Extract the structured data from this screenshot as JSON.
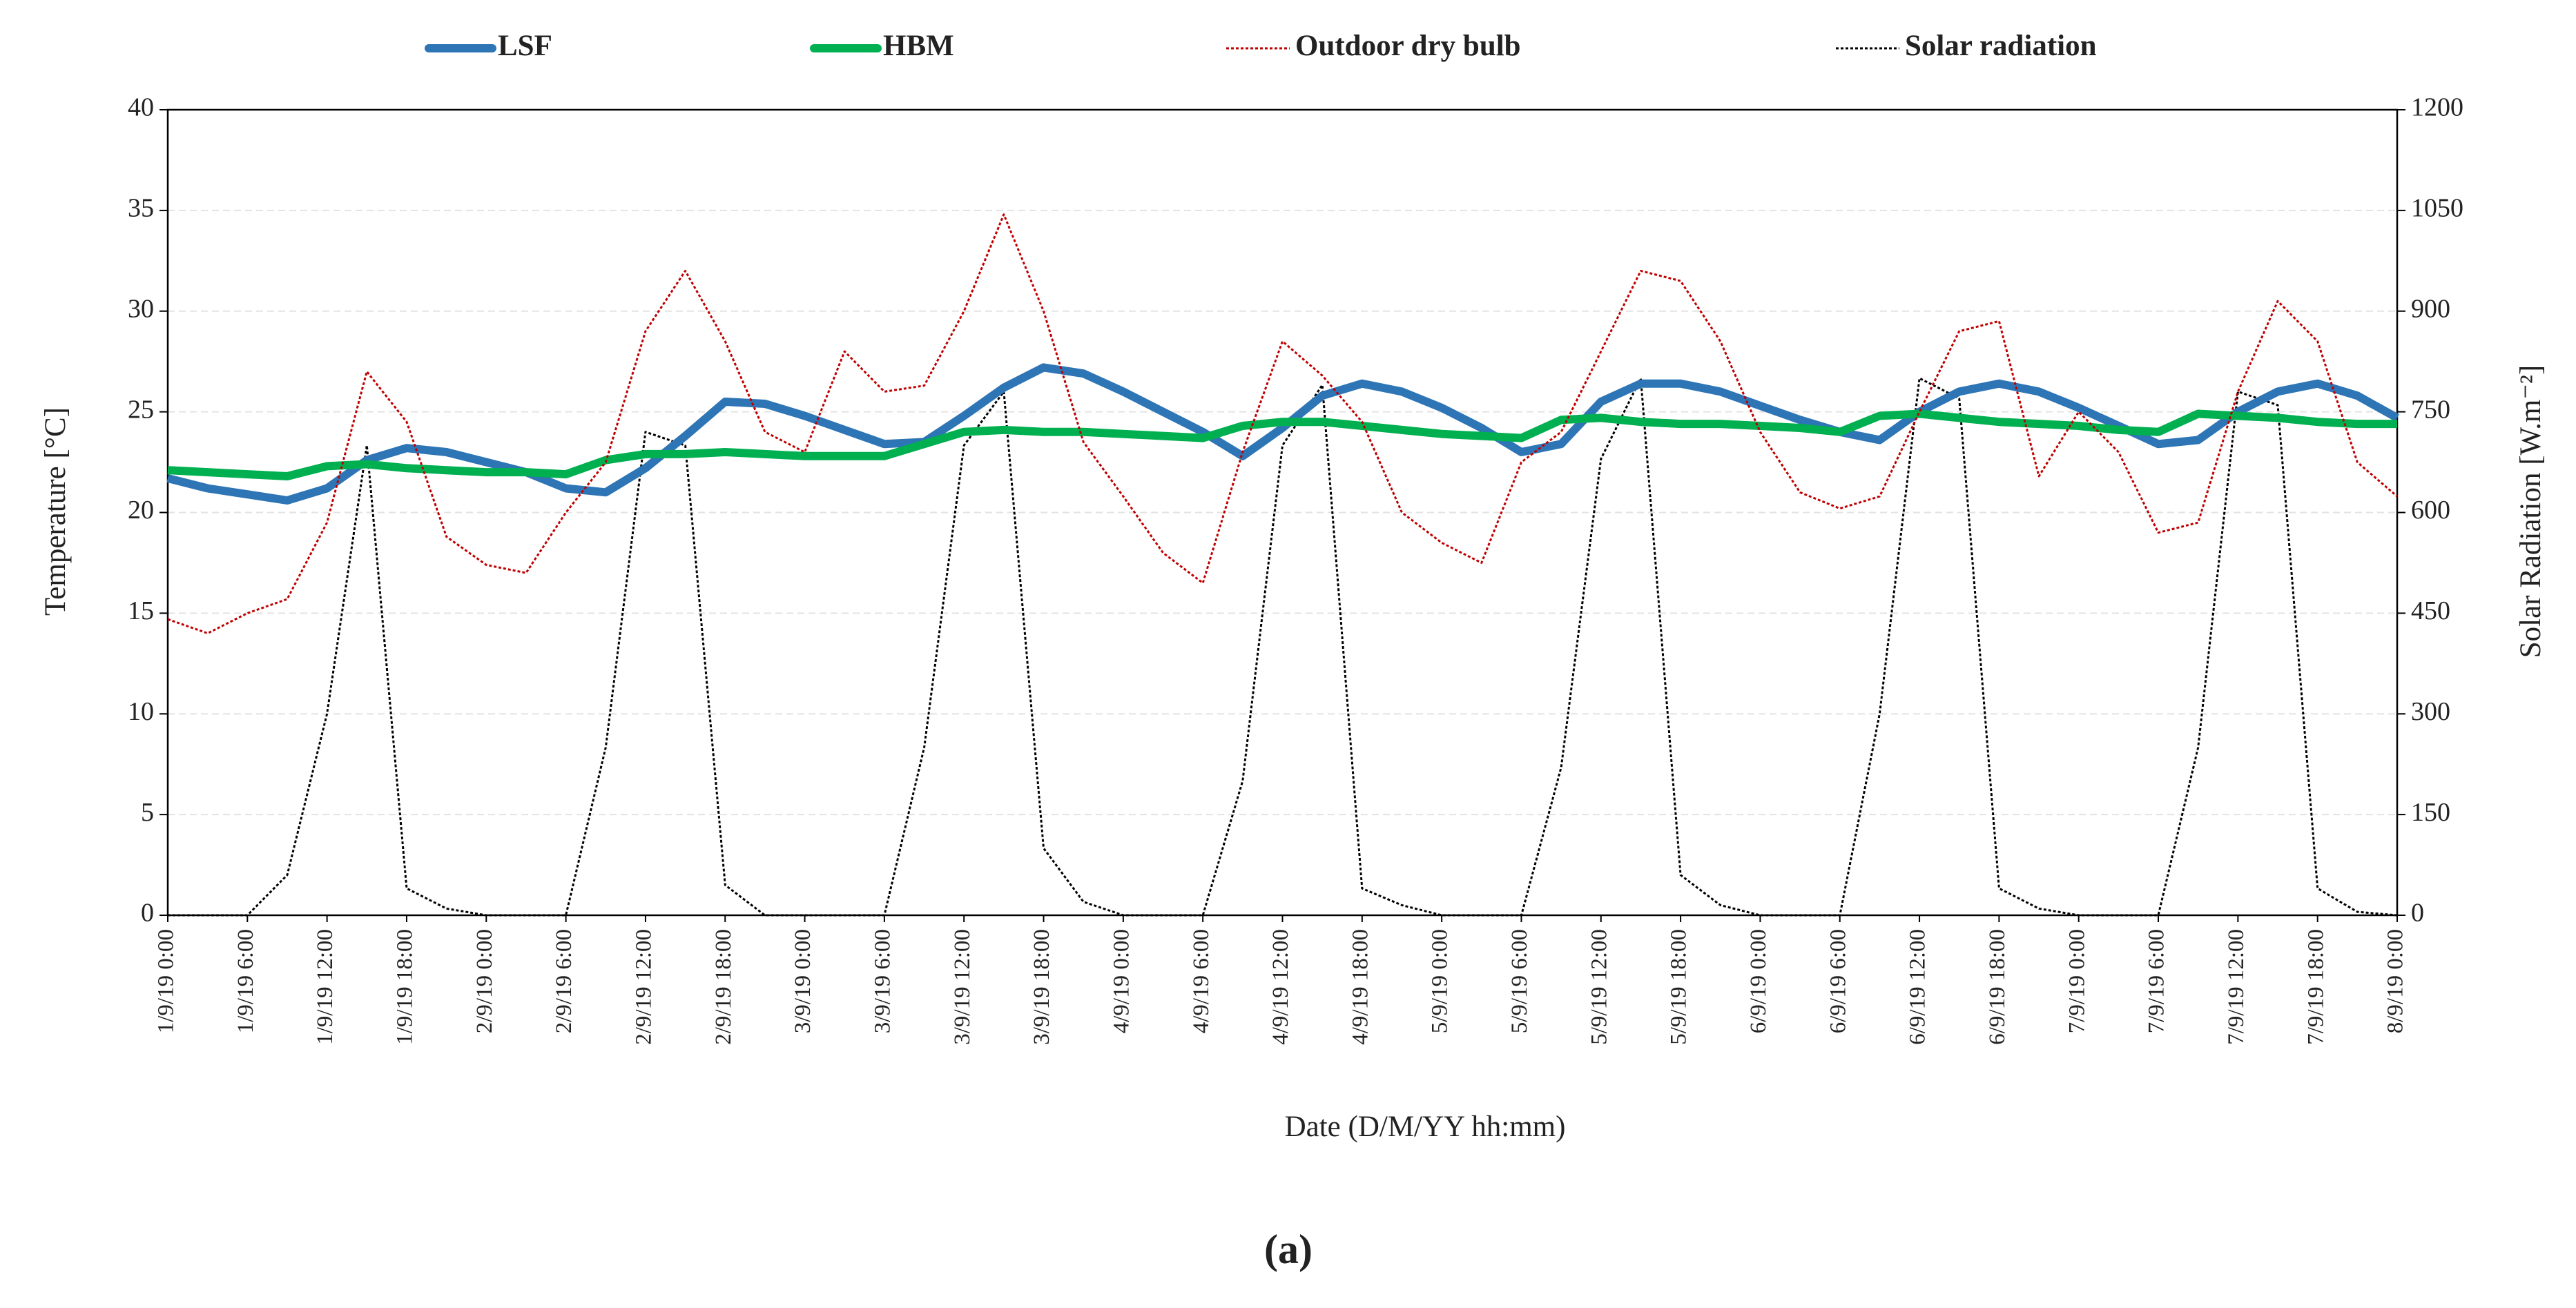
{
  "chart_data": {
    "type": "line",
    "x": [
      "1/9/19 0:00",
      "1/9/19 3:00",
      "1/9/19 6:00",
      "1/9/19 9:00",
      "1/9/19 12:00",
      "1/9/19 15:00",
      "1/9/19 18:00",
      "1/9/19 21:00",
      "2/9/19 0:00",
      "2/9/19 3:00",
      "2/9/19 6:00",
      "2/9/19 9:00",
      "2/9/19 12:00",
      "2/9/19 15:00",
      "2/9/19 18:00",
      "2/9/19 21:00",
      "3/9/19 0:00",
      "3/9/19 3:00",
      "3/9/19 6:00",
      "3/9/19 9:00",
      "3/9/19 12:00",
      "3/9/19 15:00",
      "3/9/19 18:00",
      "3/9/19 21:00",
      "4/9/19 0:00",
      "4/9/19 3:00",
      "4/9/19 6:00",
      "4/9/19 9:00",
      "4/9/19 12:00",
      "4/9/19 15:00",
      "4/9/19 18:00",
      "4/9/19 21:00",
      "5/9/19 0:00",
      "5/9/19 3:00",
      "5/9/19 6:00",
      "5/9/19 9:00",
      "5/9/19 12:00",
      "5/9/19 15:00",
      "5/9/19 18:00",
      "5/9/19 21:00",
      "6/9/19 0:00",
      "6/9/19 3:00",
      "6/9/19 6:00",
      "6/9/19 9:00",
      "6/9/19 12:00",
      "6/9/19 15:00",
      "6/9/19 18:00",
      "6/9/19 21:00",
      "7/9/19 0:00",
      "7/9/19 3:00",
      "7/9/19 6:00",
      "7/9/19 9:00",
      "7/9/19 12:00",
      "7/9/19 15:00",
      "7/9/19 18:00",
      "7/9/19 21:00",
      "8/9/19 0:00"
    ],
    "series": [
      {
        "name": "LSF",
        "color": "#2e75b6",
        "linestyle": "solid",
        "axis": "y",
        "values": [
          21.7,
          21.2,
          20.9,
          20.6,
          21.2,
          22.6,
          23.2,
          23.0,
          22.5,
          22.0,
          21.2,
          21.0,
          22.2,
          23.8,
          25.5,
          25.4,
          24.8,
          24.1,
          23.4,
          23.5,
          24.8,
          26.2,
          27.2,
          26.9,
          26.0,
          25.0,
          24.0,
          22.8,
          24.2,
          25.8,
          26.4,
          26.0,
          25.2,
          24.2,
          23.0,
          23.4,
          25.5,
          26.4,
          26.4,
          26.0,
          25.3,
          24.6,
          24.0,
          23.6,
          25.0,
          26.0,
          26.4,
          26.0,
          25.2,
          24.3,
          23.4,
          23.6,
          25.0,
          26.0,
          26.4,
          25.8,
          24.7
        ]
      },
      {
        "name": "HBM",
        "color": "#00b050",
        "linestyle": "solid",
        "axis": "y",
        "values": [
          22.1,
          22.0,
          21.9,
          21.8,
          22.3,
          22.4,
          22.2,
          22.1,
          22.0,
          22.0,
          21.9,
          22.6,
          22.9,
          22.9,
          23.0,
          22.9,
          22.8,
          22.8,
          22.8,
          23.4,
          24.0,
          24.1,
          24.0,
          24.0,
          23.9,
          23.8,
          23.7,
          24.3,
          24.5,
          24.5,
          24.3,
          24.1,
          23.9,
          23.8,
          23.7,
          24.6,
          24.7,
          24.5,
          24.4,
          24.4,
          24.3,
          24.2,
          24.0,
          24.8,
          24.9,
          24.7,
          24.5,
          24.4,
          24.3,
          24.1,
          24.0,
          24.9,
          24.8,
          24.7,
          24.5,
          24.4,
          24.4
        ]
      },
      {
        "name": "Outdoor dry bulb",
        "color": "#c00000",
        "linestyle": "dotted",
        "axis": "y",
        "values": [
          14.7,
          14.0,
          15.0,
          15.7,
          19.5,
          27.0,
          24.5,
          18.8,
          17.4,
          17.0,
          20.0,
          22.5,
          29.0,
          32.0,
          28.5,
          24.0,
          23.0,
          28.0,
          26.0,
          26.3,
          30.0,
          34.8,
          30.0,
          23.5,
          20.8,
          18.0,
          16.5,
          23.0,
          28.5,
          26.8,
          24.5,
          20.0,
          18.5,
          17.5,
          22.5,
          24.0,
          28.0,
          32.0,
          31.5,
          28.5,
          24.0,
          21.0,
          20.2,
          20.8,
          25.0,
          29.0,
          29.5,
          21.8,
          25.0,
          23.0,
          19.0,
          19.5,
          26.0,
          30.5,
          28.5,
          22.5,
          20.8
        ]
      },
      {
        "name": "Solar radiation",
        "color": "#000000",
        "linestyle": "dotted",
        "axis": "y2",
        "values": [
          0,
          0,
          0,
          60,
          300,
          700,
          40,
          10,
          0,
          0,
          0,
          250,
          720,
          700,
          45,
          0,
          0,
          0,
          0,
          250,
          700,
          780,
          100,
          20,
          0,
          0,
          0,
          200,
          700,
          790,
          40,
          15,
          0,
          0,
          0,
          220,
          680,
          800,
          60,
          15,
          0,
          0,
          0,
          300,
          800,
          770,
          40,
          10,
          0,
          0,
          0,
          250,
          780,
          760,
          40,
          5,
          0
        ]
      }
    ],
    "xlim": [
      "1/9/19 0:00",
      "8/9/19 0:00"
    ],
    "xticks": [
      "1/9/19 0:00",
      "1/9/19 6:00",
      "1/9/19 12:00",
      "1/9/19 18:00",
      "2/9/19 0:00",
      "2/9/19 6:00",
      "2/9/19 12:00",
      "2/9/19 18:00",
      "3/9/19 0:00",
      "3/9/19 6:00",
      "3/9/19 12:00",
      "3/9/19 18:00",
      "4/9/19 0:00",
      "4/9/19 6:00",
      "4/9/19 12:00",
      "4/9/19 18:00",
      "5/9/19 0:00",
      "5/9/19 6:00",
      "5/9/19 12:00",
      "5/9/19 18:00",
      "6/9/19 0:00",
      "6/9/19 6:00",
      "6/9/19 12:00",
      "6/9/19 18:00",
      "7/9/19 0:00",
      "7/9/19 6:00",
      "7/9/19 12:00",
      "7/9/19 18:00",
      "8/9/19 0:00"
    ],
    "ylim": [
      0,
      40
    ],
    "yticks": [
      0,
      5,
      10,
      15,
      20,
      25,
      30,
      35,
      40
    ],
    "y2lim": [
      0,
      1200
    ],
    "y2ticks": [
      0,
      150,
      300,
      450,
      600,
      750,
      900,
      1050,
      1200
    ],
    "ylabel": "Temperature [°C]",
    "y2label": "Solar Radiation  [W.m⁻²]",
    "xlabel": "Date (D/M/YY hh:mm)",
    "caption": "(a)",
    "grid": true,
    "legend": "top"
  }
}
